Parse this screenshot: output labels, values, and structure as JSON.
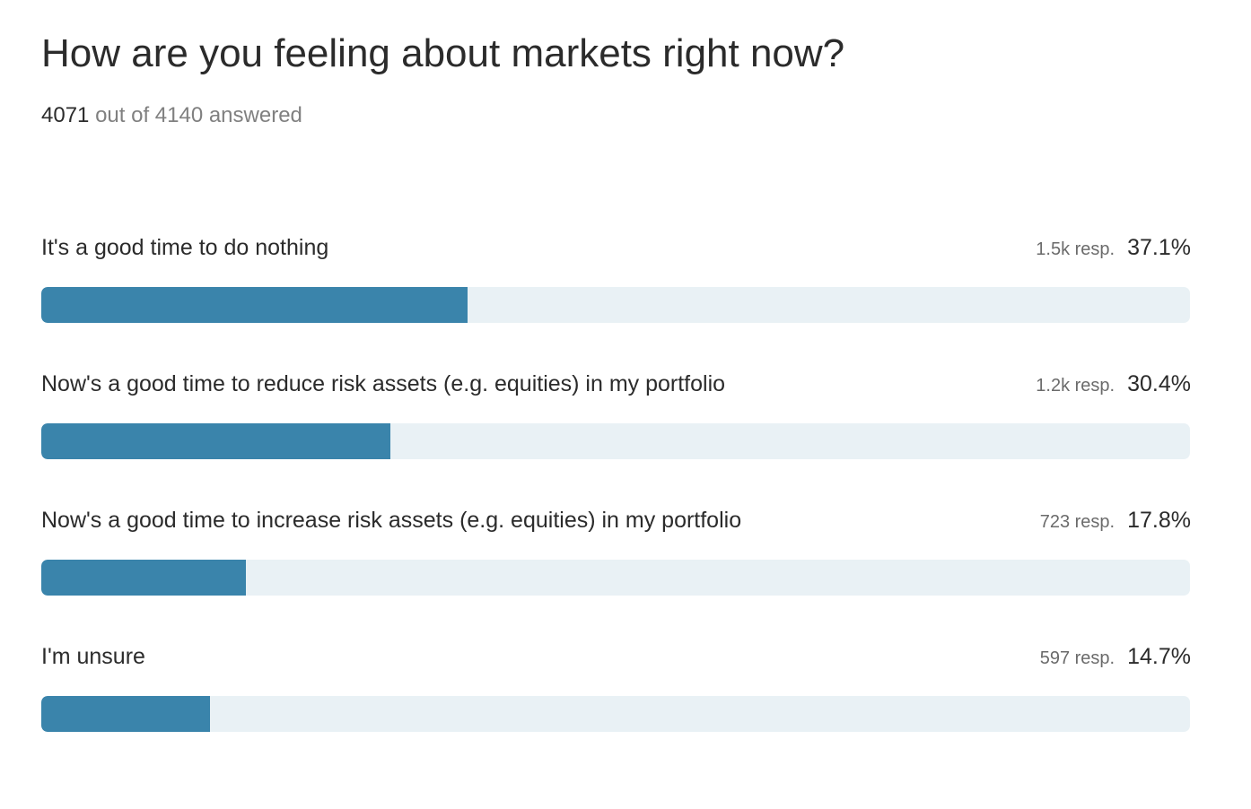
{
  "poll": {
    "title": "How are you feeling about markets right now?",
    "answered_count": "4071",
    "answered_suffix": "out of 4140 answered"
  },
  "chart_data": {
    "type": "bar",
    "title": "How are you feeling about markets right now?",
    "orientation": "horizontal",
    "categories": [
      "It's a good time to do nothing",
      "Now's a good time to reduce risk assets (e.g. equities) in my portfolio",
      "Now's a good time to increase risk assets (e.g. equities) in my portfolio",
      "I'm unsure"
    ],
    "values": [
      37.1,
      30.4,
      17.8,
      14.7
    ],
    "responses_label": [
      "1.5k resp.",
      "1.2k resp.",
      "723 resp.",
      "597 resp."
    ],
    "percent_label": [
      "37.1%",
      "30.4%",
      "17.8%",
      "14.7%"
    ],
    "xlim": [
      0,
      100
    ],
    "bar_color": "#3a84ab",
    "track_color": "#e9f1f5"
  }
}
